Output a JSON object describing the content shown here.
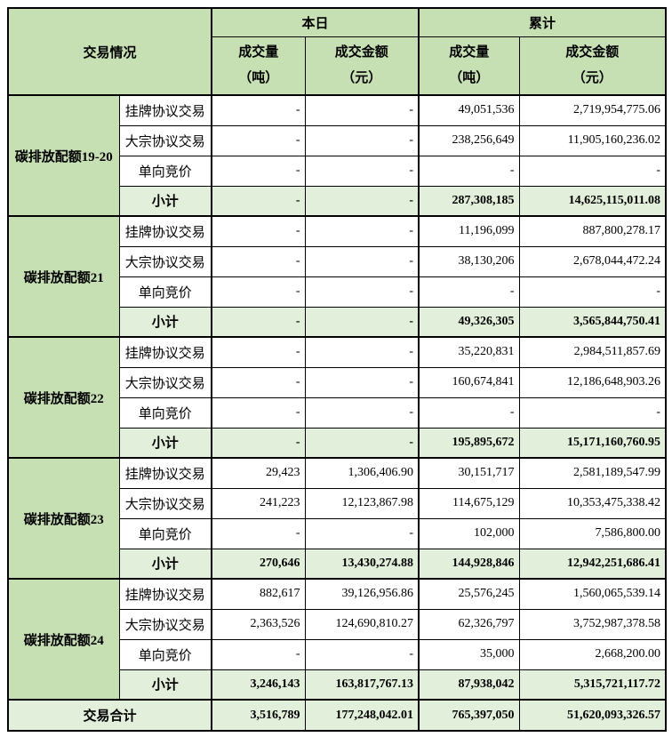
{
  "colors": {
    "header_green": "#c6e0b4",
    "subtotal_green": "#e2efda",
    "border": "#000000",
    "text": "#000000"
  },
  "header": {
    "trade_info": "交易情况",
    "today": "本日",
    "cumulative": "累计",
    "volume": "成交量",
    "volume_unit": "（吨）",
    "amount": "成交金额",
    "amount_unit": "（元）"
  },
  "groups": [
    {
      "name": "碳排放配额19-20",
      "rows": [
        {
          "label": "挂牌协议交易",
          "today_volume": "-",
          "today_amount": "-",
          "cum_volume": "49,051,536",
          "cum_amount": "2,719,954,775.06",
          "subtotal": false
        },
        {
          "label": "大宗协议交易",
          "today_volume": "-",
          "today_amount": "-",
          "cum_volume": "238,256,649",
          "cum_amount": "11,905,160,236.02",
          "subtotal": false
        },
        {
          "label": "单向竞价",
          "today_volume": "-",
          "today_amount": "-",
          "cum_volume": "-",
          "cum_amount": "-",
          "subtotal": false
        },
        {
          "label": "小计",
          "today_volume": "-",
          "today_amount": "-",
          "cum_volume": "287,308,185",
          "cum_amount": "14,625,115,011.08",
          "subtotal": true
        }
      ]
    },
    {
      "name": "碳排放配额21",
      "rows": [
        {
          "label": "挂牌协议交易",
          "today_volume": "-",
          "today_amount": "-",
          "cum_volume": "11,196,099",
          "cum_amount": "887,800,278.17",
          "subtotal": false
        },
        {
          "label": "大宗协议交易",
          "today_volume": "-",
          "today_amount": "-",
          "cum_volume": "38,130,206",
          "cum_amount": "2,678,044,472.24",
          "subtotal": false
        },
        {
          "label": "单向竞价",
          "today_volume": "-",
          "today_amount": "-",
          "cum_volume": "-",
          "cum_amount": "-",
          "subtotal": false
        },
        {
          "label": "小计",
          "today_volume": "-",
          "today_amount": "-",
          "cum_volume": "49,326,305",
          "cum_amount": "3,565,844,750.41",
          "subtotal": true
        }
      ]
    },
    {
      "name": "碳排放配额22",
      "rows": [
        {
          "label": "挂牌协议交易",
          "today_volume": "-",
          "today_amount": "-",
          "cum_volume": "35,220,831",
          "cum_amount": "2,984,511,857.69",
          "subtotal": false
        },
        {
          "label": "大宗协议交易",
          "today_volume": "-",
          "today_amount": "-",
          "cum_volume": "160,674,841",
          "cum_amount": "12,186,648,903.26",
          "subtotal": false
        },
        {
          "label": "单向竞价",
          "today_volume": "-",
          "today_amount": "-",
          "cum_volume": "-",
          "cum_amount": "-",
          "subtotal": false
        },
        {
          "label": "小计",
          "today_volume": "-",
          "today_amount": "-",
          "cum_volume": "195,895,672",
          "cum_amount": "15,171,160,760.95",
          "subtotal": true
        }
      ]
    },
    {
      "name": "碳排放配额23",
      "rows": [
        {
          "label": "挂牌协议交易",
          "today_volume": "29,423",
          "today_amount": "1,306,406.90",
          "cum_volume": "30,151,717",
          "cum_amount": "2,581,189,547.99",
          "subtotal": false
        },
        {
          "label": "大宗协议交易",
          "today_volume": "241,223",
          "today_amount": "12,123,867.98",
          "cum_volume": "114,675,129",
          "cum_amount": "10,353,475,338.42",
          "subtotal": false
        },
        {
          "label": "单向竞价",
          "today_volume": "-",
          "today_amount": "-",
          "cum_volume": "102,000",
          "cum_amount": "7,586,800.00",
          "subtotal": false
        },
        {
          "label": "小计",
          "today_volume": "270,646",
          "today_amount": "13,430,274.88",
          "cum_volume": "144,928,846",
          "cum_amount": "12,942,251,686.41",
          "subtotal": true
        }
      ]
    },
    {
      "name": "碳排放配额24",
      "rows": [
        {
          "label": "挂牌协议交易",
          "today_volume": "882,617",
          "today_amount": "39,126,956.86",
          "cum_volume": "25,576,245",
          "cum_amount": "1,560,065,539.14",
          "subtotal": false
        },
        {
          "label": "大宗协议交易",
          "today_volume": "2,363,526",
          "today_amount": "124,690,810.27",
          "cum_volume": "62,326,797",
          "cum_amount": "3,752,987,378.58",
          "subtotal": false
        },
        {
          "label": "单向竞价",
          "today_volume": "-",
          "today_amount": "-",
          "cum_volume": "35,000",
          "cum_amount": "2,668,200.00",
          "subtotal": false
        },
        {
          "label": "小计",
          "today_volume": "3,246,143",
          "today_amount": "163,817,767.13",
          "cum_volume": "87,938,042",
          "cum_amount": "5,315,721,117.72",
          "subtotal": true
        }
      ]
    }
  ],
  "total": {
    "label": "交易合计",
    "today_volume": "3,516,789",
    "today_amount": "177,248,042.01",
    "cum_volume": "765,397,050",
    "cum_amount": "51,620,093,326.57"
  }
}
